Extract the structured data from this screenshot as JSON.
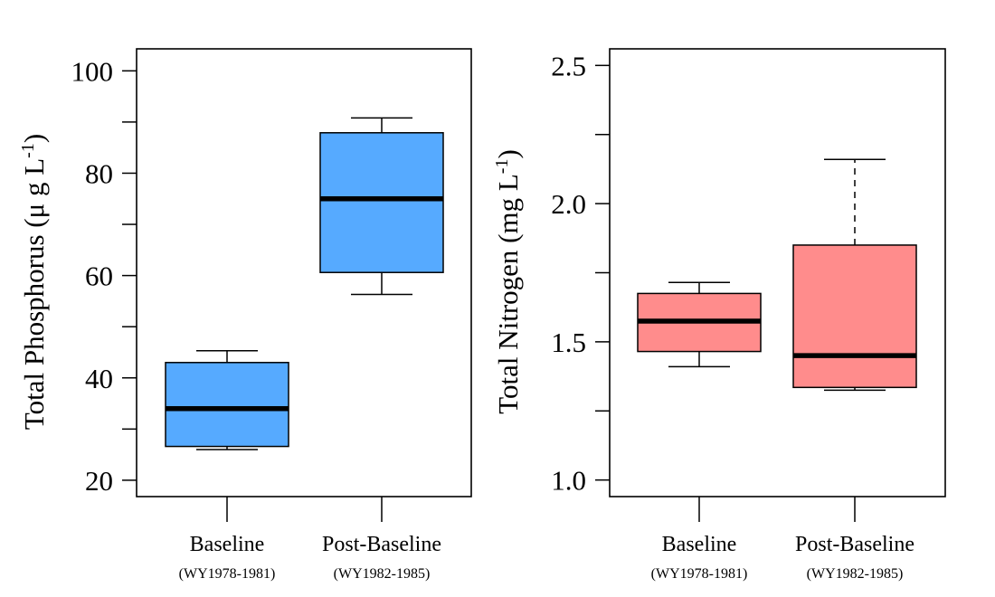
{
  "chart_data": [
    {
      "type": "boxplot",
      "ylabel": "Total Phosphorus (μ g L",
      "ylabel_sup": "-1",
      "ylabel_close": ")",
      "ylim": [
        16.8,
        104.3
      ],
      "yticks": [
        20,
        40,
        60,
        80,
        100
      ],
      "ytick_labels": [
        "20",
        "40",
        "60",
        "80",
        "100"
      ],
      "ytick_minor": [
        30,
        50,
        70,
        90
      ],
      "categories": [
        "Baseline",
        "Post-Baseline"
      ],
      "subcategories": [
        "(WY1978-1981)",
        "(WY1982-1985)"
      ],
      "fill_color": "#56aaff",
      "boxes": [
        {
          "name": "Baseline",
          "whisker_low": 26.0,
          "q1": 26.6,
          "median": 34.0,
          "q3": 43.0,
          "whisker_high": 45.3,
          "upper_dashed": false
        },
        {
          "name": "Post-Baseline",
          "whisker_low": 56.3,
          "q1": 60.6,
          "median": 75.0,
          "q3": 87.9,
          "whisker_high": 90.8,
          "upper_dashed": false
        }
      ]
    },
    {
      "type": "boxplot",
      "ylabel": "Total Nitrogen (mg L",
      "ylabel_sup": "-1",
      "ylabel_close": ")",
      "ylim": [
        0.94,
        2.56
      ],
      "yticks": [
        1.0,
        1.5,
        2.0,
        2.5
      ],
      "ytick_labels": [
        "1.0",
        "1.5",
        "2.0",
        "2.5"
      ],
      "ytick_minor": [
        1.25,
        1.75,
        2.25
      ],
      "categories": [
        "Baseline",
        "Post-Baseline"
      ],
      "subcategories": [
        "(WY1978-1981)",
        "(WY1982-1985)"
      ],
      "fill_color": "#ff8c8c",
      "boxes": [
        {
          "name": "Baseline",
          "whisker_low": 1.41,
          "q1": 1.465,
          "median": 1.575,
          "q3": 1.675,
          "whisker_high": 1.715,
          "upper_dashed": false
        },
        {
          "name": "Post-Baseline",
          "whisker_low": 1.325,
          "q1": 1.335,
          "median": 1.45,
          "q3": 1.85,
          "whisker_high": 2.16,
          "upper_dashed": true
        }
      ]
    }
  ]
}
